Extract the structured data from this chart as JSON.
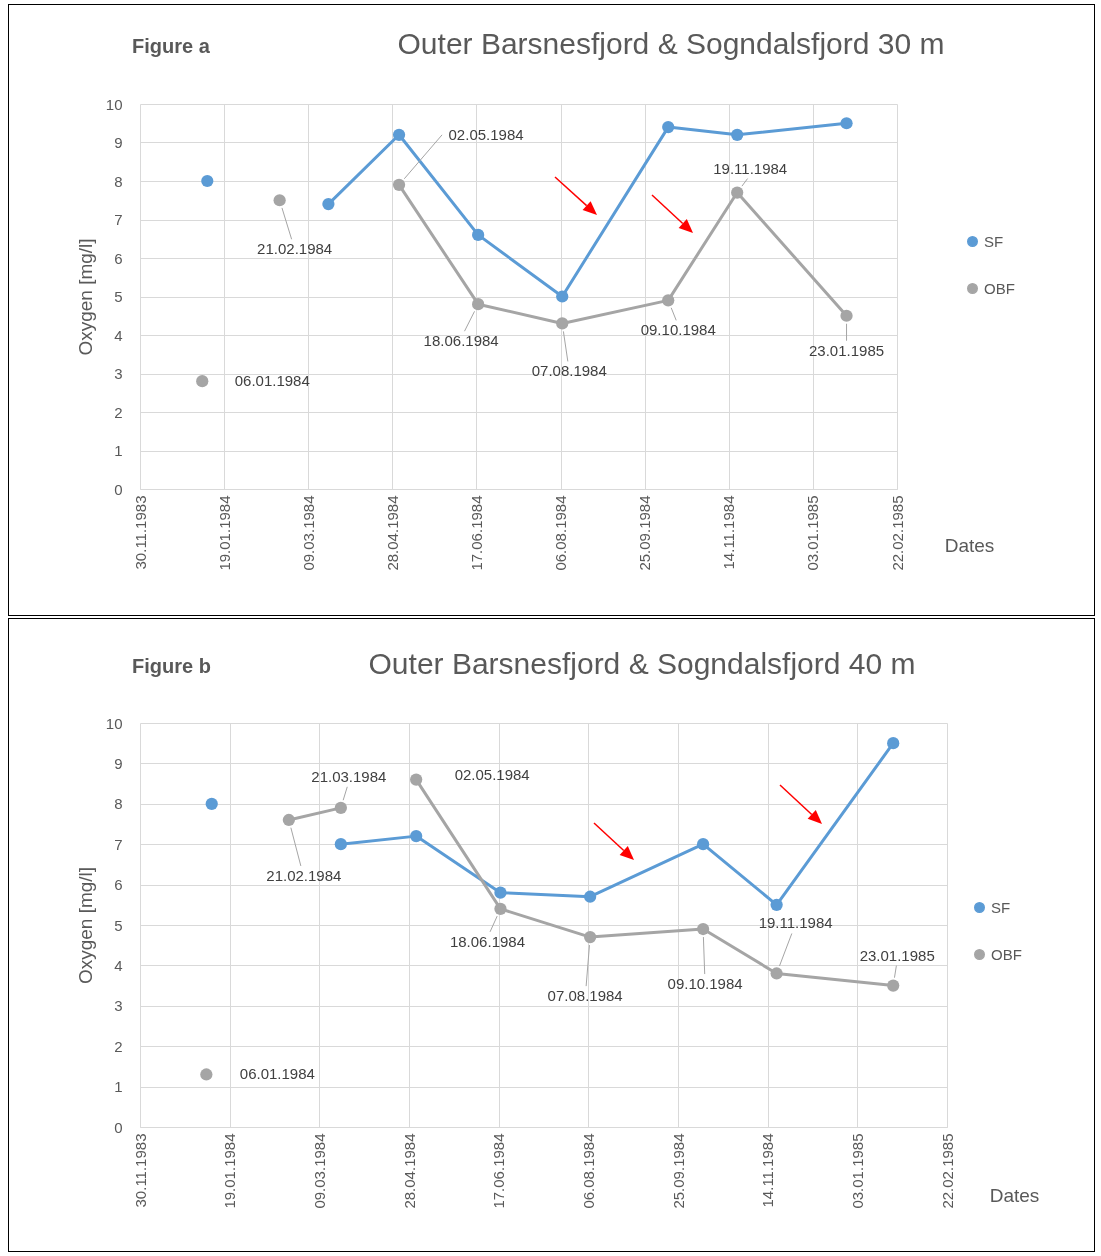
{
  "chart_data": [
    {
      "type": "line",
      "title": "Outer Barsnesfjord & Sogndalsfjord 30 m",
      "xlabel": "Dates",
      "ylabel": "Oxygen [mg/l]",
      "xlim": [
        "1983-11-30",
        "1985-02-22"
      ],
      "xticks": [
        {
          "value": "1983-11-30",
          "label": "30.11.1983"
        },
        {
          "value": "1984-01-19",
          "label": "19.01.1984"
        },
        {
          "value": "1984-03-09",
          "label": "09.03.1984"
        },
        {
          "value": "1984-04-28",
          "label": "28.04.1984"
        },
        {
          "value": "1984-06-17",
          "label": "17.06.1984"
        },
        {
          "value": "1984-08-06",
          "label": "06.08.1984"
        },
        {
          "value": "1984-09-25",
          "label": "25.09.1984"
        },
        {
          "value": "1984-11-14",
          "label": "14.11.1984"
        },
        {
          "value": "1985-01-03",
          "label": "03.01.1985"
        },
        {
          "value": "1985-02-22",
          "label": "22.02.1985"
        }
      ],
      "ylim": [
        0,
        10
      ],
      "yticks": [
        0,
        1,
        2,
        3,
        4,
        5,
        6,
        7,
        8,
        9,
        10
      ],
      "grid": true,
      "legend": "right",
      "marker": "circle",
      "line_style": "solid",
      "series": [
        {
          "name": "SF",
          "color": "#5b9bd5",
          "x": [
            "1984-03-21",
            "1984-05-02",
            "1984-06-18",
            "1984-08-07",
            "1984-10-09",
            "1984-11-19",
            "1985-01-23"
          ],
          "values": [
            7.4,
            9.2,
            6.6,
            5.0,
            9.4,
            9.2,
            9.5
          ]
        },
        {
          "name": "OBF",
          "color": "#a5a5a5",
          "x": [
            "1984-05-02",
            "1984-06-18",
            "1984-08-07",
            "1984-10-09",
            "1984-11-19",
            "1985-01-23"
          ],
          "values": [
            7.9,
            4.8,
            4.3,
            4.9,
            7.7,
            4.5
          ]
        },
        {
          "type": "scatter",
          "color": "#5b9bd5",
          "x": [
            "1984-01-09"
          ],
          "values": [
            8.0
          ]
        },
        {
          "type": "scatter",
          "color": "#a5a5a5",
          "x": [
            "1984-01-06",
            "1984-02-21"
          ],
          "values": [
            2.8,
            7.5
          ]
        }
      ],
      "annotations": [
        "Figure a",
        {
          "text": "06.01.1984",
          "x": "1984-01-06",
          "y": 2.8
        },
        {
          "text": "21.02.1984",
          "x": "1984-02-21",
          "y": 7.5
        },
        {
          "text": "02.05.1984",
          "x": "1984-05-02",
          "y": 7.9
        },
        {
          "text": "18.06.1984",
          "x": "1984-06-18",
          "y": 4.8
        },
        {
          "text": "07.08.1984",
          "x": "1984-08-07",
          "y": 4.3
        },
        {
          "text": "09.10.1984",
          "x": "1984-10-09",
          "y": 4.9
        },
        {
          "text": "19.11.1984",
          "x": "1984-11-19",
          "y": 7.7
        },
        {
          "text": "23.01.1985",
          "x": "1985-01-23",
          "y": 4.5
        }
      ]
    },
    {
      "type": "line",
      "title": "Outer Barsnesfjord & Sogndalsfjord 40 m",
      "xlabel": "Dates",
      "ylabel": "Oxygen [mg/l]",
      "xlim": [
        "1983-11-30",
        "1985-02-22"
      ],
      "xticks": [
        {
          "value": "1983-11-30",
          "label": "30.11.1983"
        },
        {
          "value": "1984-01-19",
          "label": "19.01.1984"
        },
        {
          "value": "1984-03-09",
          "label": "09.03.1984"
        },
        {
          "value": "1984-04-28",
          "label": "28.04.1984"
        },
        {
          "value": "1984-06-17",
          "label": "17.06.1984"
        },
        {
          "value": "1984-08-06",
          "label": "06.08.1984"
        },
        {
          "value": "1984-09-25",
          "label": "25.09.1984"
        },
        {
          "value": "1984-11-14",
          "label": "14.11.1984"
        },
        {
          "value": "1985-01-03",
          "label": "03.01.1985"
        },
        {
          "value": "1985-02-22",
          "label": "22.02.1985"
        }
      ],
      "ylim": [
        0,
        10
      ],
      "yticks": [
        0,
        1,
        2,
        3,
        4,
        5,
        6,
        7,
        8,
        9,
        10
      ],
      "grid": true,
      "legend": "right",
      "marker": "circle",
      "line_style": "solid",
      "series": [
        {
          "name": "SF",
          "color": "#5b9bd5",
          "x": [
            "1984-03-21",
            "1984-05-02",
            "1984-06-18",
            "1984-08-07",
            "1984-10-09",
            "1984-11-19",
            "1985-01-23"
          ],
          "values": [
            7.0,
            7.2,
            5.8,
            5.7,
            7.0,
            5.5,
            9.5
          ]
        },
        {
          "name": "OBF",
          "color": "#a5a5a5",
          "x": [
            "1984-05-02",
            "1984-06-18",
            "1984-08-07",
            "1984-10-09",
            "1984-11-19",
            "1985-01-23"
          ],
          "values": [
            8.6,
            5.4,
            4.7,
            4.9,
            3.8,
            3.5
          ]
        },
        {
          "type": "line",
          "color": "#a5a5a5",
          "x": [
            "1984-02-21",
            "1984-03-21"
          ],
          "values": [
            7.6,
            7.9
          ]
        },
        {
          "type": "scatter",
          "color": "#5b9bd5",
          "x": [
            "1984-01-09"
          ],
          "values": [
            8.0
          ]
        },
        {
          "type": "scatter",
          "color": "#a5a5a5",
          "x": [
            "1984-01-06"
          ],
          "values": [
            1.3
          ]
        }
      ],
      "annotations": [
        "Figure b",
        {
          "text": "06.01.1984",
          "x": "1984-01-06",
          "y": 1.3
        },
        {
          "text": "21.02.1984",
          "x": "1984-02-21",
          "y": 7.6
        },
        {
          "text": "21.03.1984",
          "x": "1984-03-21",
          "y": 7.9
        },
        {
          "text": "02.05.1984",
          "x": "1984-05-02",
          "y": 8.6
        },
        {
          "text": "18.06.1984",
          "x": "1984-06-18",
          "y": 5.4
        },
        {
          "text": "07.08.1984",
          "x": "1984-08-07",
          "y": 4.7
        },
        {
          "text": "09.10.1984",
          "x": "1984-10-09",
          "y": 4.9
        },
        {
          "text": "19.11.1984",
          "x": "1984-11-19",
          "y": 3.8
        },
        {
          "text": "23.01.1985",
          "x": "1985-01-23",
          "y": 3.5
        }
      ]
    }
  ]
}
